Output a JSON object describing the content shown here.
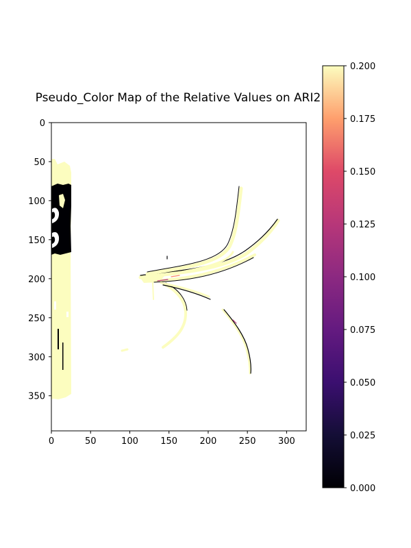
{
  "chart_data": {
    "type": "heatmap",
    "title": "Pseudo_Color Map of the Relative Values on ARI2",
    "xlabel": "",
    "ylabel": "",
    "colormap": "magma",
    "x_range": [
      0,
      325
    ],
    "y_range": [
      395,
      0
    ],
    "x_ticks": [
      0,
      50,
      100,
      150,
      200,
      250,
      300
    ],
    "y_ticks": [
      0,
      50,
      100,
      150,
      200,
      250,
      300,
      350
    ],
    "colorbar": {
      "min": 0.0,
      "max": 0.2,
      "ticks": [
        "0.000",
        "0.025",
        "0.050",
        "0.075",
        "0.100",
        "0.125",
        "0.150",
        "0.175",
        "0.200"
      ],
      "position": "right"
    },
    "background_value": "NaN (masked, white)",
    "regions": [
      {
        "name": "left strip",
        "description": "mostly saturated >= 0.200 with a block of near-zero values",
        "x": [
          2,
          25
        ],
        "y": [
          55,
          350
        ],
        "value": 0.2
      },
      {
        "name": "left dark block",
        "x": [
          0,
          25
        ],
        "y": [
          78,
          165
        ],
        "value": 0.0
      },
      {
        "name": "leaf veins",
        "description": "thin curved traces radiating from ~(115, 200), mostly 0.200 with edges near 0.000",
        "value": 0.2
      }
    ]
  },
  "colors": {
    "saturated": "#fcfdbf",
    "low": "#000004",
    "edge_mid": "#b73779",
    "edge_light": "#fb8861"
  }
}
